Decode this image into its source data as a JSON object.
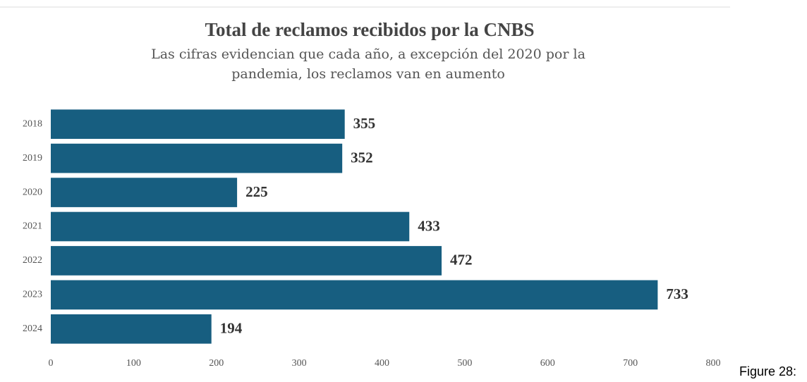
{
  "caption": "Figure 28:",
  "chart_data": {
    "type": "bar",
    "orientation": "horizontal",
    "title": "Total de reclamos recibidos por la CNBS",
    "subtitle": [
      "Las cifras evidencian que cada año, a excepción del 2020 por la",
      "pandemia, los reclamos van en aumento"
    ],
    "categories": [
      "2018",
      "2019",
      "2020",
      "2021",
      "2022",
      "2023",
      "2024"
    ],
    "values": [
      355,
      352,
      225,
      433,
      472,
      733,
      194
    ],
    "color": "#175e80",
    "xlim": [
      0,
      800
    ],
    "xticks": [
      0,
      100,
      200,
      300,
      400,
      500,
      600,
      700,
      800
    ],
    "grid": false
  }
}
